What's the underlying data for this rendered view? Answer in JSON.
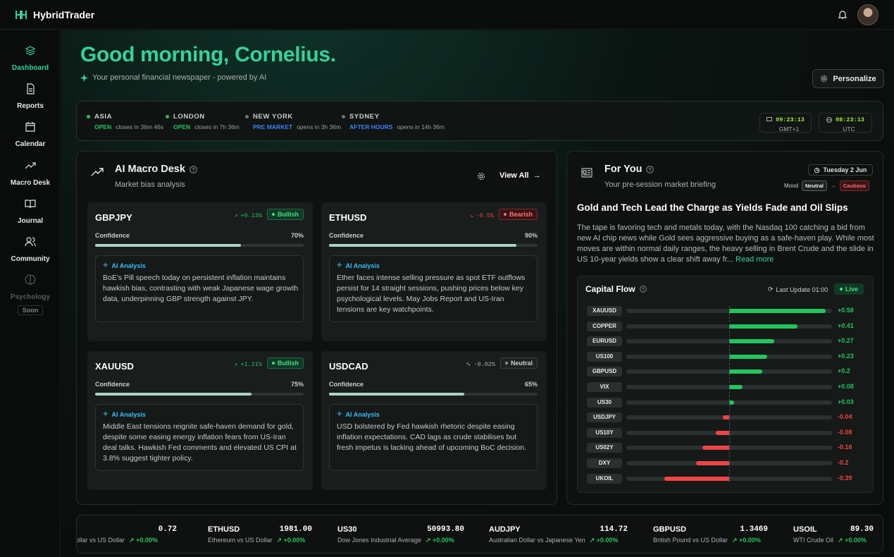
{
  "app": {
    "name": "HybridTrader"
  },
  "nav": [
    {
      "label": "Dashboard",
      "icon": "layers-icon",
      "active": true
    },
    {
      "label": "Reports",
      "icon": "file-icon"
    },
    {
      "label": "Calendar",
      "icon": "calendar-icon"
    },
    {
      "label": "Macro Desk",
      "icon": "trend-icon"
    },
    {
      "label": "Journal",
      "icon": "book-icon"
    },
    {
      "label": "Community",
      "icon": "users-icon"
    },
    {
      "label": "Psychology",
      "icon": "brain-icon",
      "badge": "Soon",
      "disabled": true
    }
  ],
  "header": {
    "greeting": "Good morning, Cornelius.",
    "subtitle": "Your personal financial newspaper - powered by AI",
    "personalize": "Personalize"
  },
  "markets": [
    {
      "name": "ASIA",
      "status": "OPEN",
      "detail": "closes in 36m 46s",
      "color": "#22c55e"
    },
    {
      "name": "LONDON",
      "status": "OPEN",
      "detail": "closes in 7h 36m",
      "color": "#22c55e"
    },
    {
      "name": "NEW YORK",
      "status": "PRE MARKET",
      "detail": "opens in 3h 36m",
      "color": "#3b82f6"
    },
    {
      "name": "SYDNEY",
      "status": "AFTER HOURS",
      "detail": "opens in 14h 36m",
      "color": "#3b82f6"
    }
  ],
  "clocks": [
    {
      "time": "09:23:13",
      "tz": "GMT+1"
    },
    {
      "time": "08:23:13",
      "tz": "UTC"
    }
  ],
  "macro": {
    "title": "AI Macro Desk",
    "subtitle": "Market bias analysis",
    "view_all": "View All",
    "confidence_label": "Confidence",
    "ai_label": "AI Analysis",
    "cards": [
      {
        "symbol": "GBPJPY",
        "change": "+0.13%",
        "bias": "Bullish",
        "confidence": "70%",
        "conf_value": 70,
        "analysis": "BoE's Pill speech today on persistent inflation maintains hawkish bias, contrasting with weak Japanese wage growth data, underpinning GBP strength against JPY."
      },
      {
        "symbol": "ETHUSD",
        "change": "-0.5%",
        "bias": "Bearish",
        "confidence": "90%",
        "conf_value": 90,
        "analysis": "Ether faces intense selling pressure as spot ETF outflows persist for 14 straight sessions, pushing prices below key psychological levels. May Jobs Report and US-Iran tensions are key watchpoints."
      },
      {
        "symbol": "XAUUSD",
        "change": "+1.21%",
        "bias": "Bullish",
        "confidence": "75%",
        "conf_value": 75,
        "analysis": "Middle East tensions reignite safe-haven demand for gold, despite some easing energy inflation fears from US-Iran deal talks. Hawkish Fed comments and elevated US CPI at 3.8% suggest tighter policy."
      },
      {
        "symbol": "USDCAD",
        "change": "-0.02%",
        "bias": "Neutral",
        "confidence": "65%",
        "conf_value": 65,
        "analysis": "USD bolstered by Fed hawkish rhetoric despite easing inflation expectations. CAD lags as crude stabilises but fresh impetus is lacking ahead of upcoming BoC decision."
      }
    ]
  },
  "foryou": {
    "title": "For You",
    "subtitle": "Your pre-session market briefing",
    "date": "Tuesday 2 Jun",
    "mood_label": "Mood",
    "mood_from": "Neutral",
    "mood_to": "Cautious",
    "headline": "Gold and Tech Lead the Charge as Yields Fade and Oil Slips",
    "body": "The tape is favoring tech and metals today, with the Nasdaq 100 catching a bid from new AI chip news while Gold sees aggressive buying as a safe-haven play. While most moves are within normal daily ranges, the heavy selling in Brent Crude and the slide in US 10-year yields show a clear shift away fr...",
    "read_more": "Read more"
  },
  "capital_flow": {
    "title": "Capital Flow",
    "last_update": "Last Update 01:00",
    "live": "Live",
    "rows": [
      {
        "label": "XAUUSD",
        "value": 0.58,
        "text": "+0.58"
      },
      {
        "label": "COPPER",
        "value": 0.41,
        "text": "+0.41"
      },
      {
        "label": "EURUSD",
        "value": 0.27,
        "text": "+0.27"
      },
      {
        "label": "US100",
        "value": 0.23,
        "text": "+0.23"
      },
      {
        "label": "GBPUSD",
        "value": 0.2,
        "text": "+0.2"
      },
      {
        "label": "VIX",
        "value": 0.08,
        "text": "+0.08"
      },
      {
        "label": "US30",
        "value": 0.03,
        "text": "+0.03"
      },
      {
        "label": "USDJPY",
        "value": -0.04,
        "text": "-0.04"
      },
      {
        "label": "US10Y",
        "value": -0.08,
        "text": "-0.08"
      },
      {
        "label": "US02Y",
        "value": -0.16,
        "text": "-0.16"
      },
      {
        "label": "DXY",
        "value": -0.2,
        "text": "-0.2"
      },
      {
        "label": "UKOIL",
        "value": -0.39,
        "text": "-0.39"
      }
    ]
  },
  "ticker": [
    {
      "symbol": ")",
      "name": "Dollar vs US Dollar",
      "price": "0.72",
      "change": "+0.00%"
    },
    {
      "symbol": "ETHUSD",
      "name": "Ethereum vs US Dollar",
      "price": "1981.00",
      "change": "+0.00%"
    },
    {
      "symbol": "US30",
      "name": "Dow Jones Industrial Average",
      "price": "50993.80",
      "change": "+0.00%"
    },
    {
      "symbol": "AUDJPY",
      "name": "Australian Dollar vs Japanese Yen",
      "price": "114.72",
      "change": "+0.00%"
    },
    {
      "symbol": "GBPUSD",
      "name": "British Pound vs US Dollar",
      "price": "1.3469",
      "change": "+0.00%"
    },
    {
      "symbol": "USOIL",
      "name": "WTI Crude Oil",
      "price": "89.30",
      "change": "+0.00%"
    }
  ],
  "colors": {
    "accent": "#34d399",
    "positive": "#22c55e",
    "negative": "#ef4444",
    "info": "#38bdf8"
  }
}
